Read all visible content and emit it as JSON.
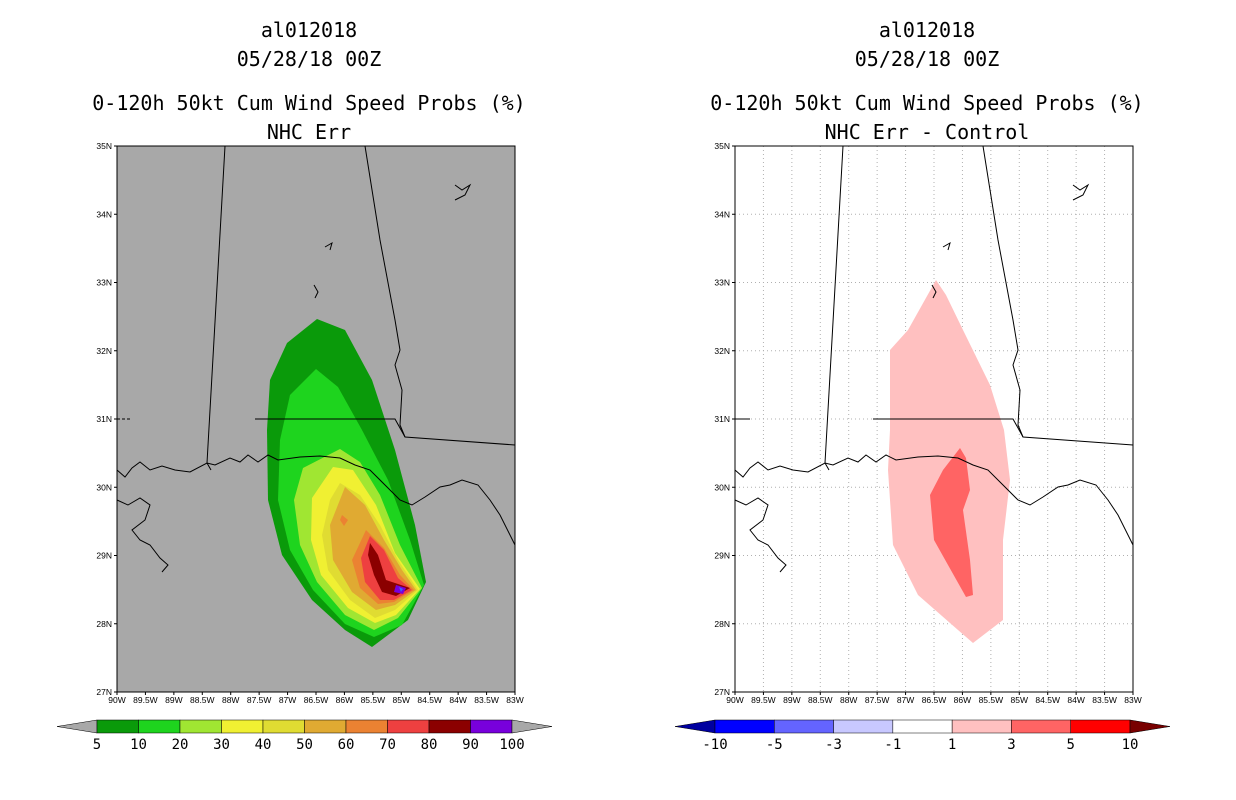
{
  "panels": [
    {
      "storm_id": "al012018",
      "datetime": "05/28/18 00Z",
      "title": "0-120h 50kt Cum Wind Speed Probs (%)",
      "subtitle": "NHC Err",
      "background": "#a8a8a8",
      "colorbar": {
        "labels": [
          "5",
          "10",
          "20",
          "30",
          "40",
          "50",
          "60",
          "70",
          "80",
          "90",
          "100"
        ],
        "colors": [
          "#a8a8a8",
          "#0a9a0a",
          "#1ed41e",
          "#a0e632",
          "#f0f032",
          "#e0dc32",
          "#e0aa32",
          "#eb8232",
          "#ee4040",
          "#8b0000",
          "#7800dc",
          "#a8a8a8"
        ]
      }
    },
    {
      "storm_id": "al012018",
      "datetime": "05/28/18 00Z",
      "title": "0-120h 50kt Cum Wind Speed Probs (%)",
      "subtitle": "NHC Err - Control",
      "background": "#ffffff",
      "colorbar": {
        "labels": [
          "-10",
          "-5",
          "-3",
          "-1",
          "1",
          "3",
          "5",
          "10"
        ],
        "colors": [
          "#0000a0",
          "#0000ff",
          "#6464ff",
          "#c8c8ff",
          "#ffffff",
          "#ffc0c0",
          "#ff6464",
          "#ff0000",
          "#780000"
        ]
      }
    }
  ],
  "map": {
    "lat_labels": [
      "35N",
      "34N",
      "33N",
      "32N",
      "31N",
      "30N",
      "29N",
      "28N",
      "27N"
    ],
    "lon_labels": [
      "90W",
      "89.5W",
      "89W",
      "88.5W",
      "88W",
      "87.5W",
      "87W",
      "86.5W",
      "86W",
      "85.5W",
      "85W",
      "84.5W",
      "84W",
      "83.5W",
      "83W"
    ],
    "lon_range": [
      -90,
      -83
    ],
    "lat_range": [
      27,
      35
    ]
  }
}
